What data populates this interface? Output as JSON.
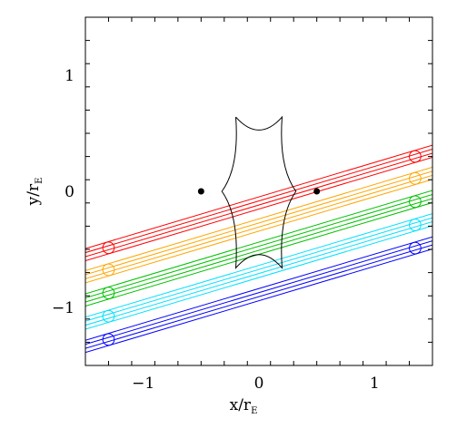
{
  "chart_data": {
    "type": "line",
    "xlabel": "x/r",
    "xlabel_sub": "E",
    "ylabel": "y/r",
    "ylabel_sub": "E",
    "xlim": [
      -1.5,
      1.5
    ],
    "ylim": [
      -1.5,
      1.5
    ],
    "x_ticks": [
      -1,
      0,
      1
    ],
    "y_ticks": [
      -1,
      0,
      1
    ],
    "x_tick_labels": [
      "−1",
      "0",
      "1"
    ],
    "y_tick_labels": [
      "−1",
      "0",
      "1"
    ],
    "minor_tick_step": 0.2,
    "lenses": [
      {
        "x": -0.5,
        "y": 0.0
      },
      {
        "x": 0.5,
        "y": 0.0
      }
    ],
    "caustic": {
      "cusps": [
        {
          "x": -0.2,
          "y": 0.64
        },
        {
          "x": 0.2,
          "y": 0.64
        },
        {
          "x": 0.32,
          "y": 0.0
        },
        {
          "x": 0.2,
          "y": -0.66
        },
        {
          "x": -0.2,
          "y": -0.66
        },
        {
          "x": -0.32,
          "y": 0.0
        }
      ]
    },
    "track_slope": 0.297,
    "groups": [
      {
        "color": "#ff0000",
        "y_center_at_x0": -0.1,
        "spacing": 0.035,
        "source_radius": 0.05,
        "circle_x": [
          -1.3,
          1.35
        ]
      },
      {
        "color": "#ffa500",
        "y_center_at_x0": -0.29,
        "spacing": 0.035,
        "source_radius": 0.05,
        "circle_x": [
          -1.3,
          1.35
        ]
      },
      {
        "color": "#00c000",
        "y_center_at_x0": -0.49,
        "spacing": 0.035,
        "source_radius": 0.05,
        "circle_x": [
          -1.3,
          1.35
        ]
      },
      {
        "color": "#00e0ff",
        "y_center_at_x0": -0.69,
        "spacing": 0.035,
        "source_radius": 0.05,
        "circle_x": [
          -1.3,
          1.35
        ]
      },
      {
        "color": "#0000ff",
        "y_center_at_x0": -0.89,
        "spacing": 0.035,
        "source_radius": 0.05,
        "circle_x": [
          -1.3,
          1.35
        ]
      }
    ]
  }
}
